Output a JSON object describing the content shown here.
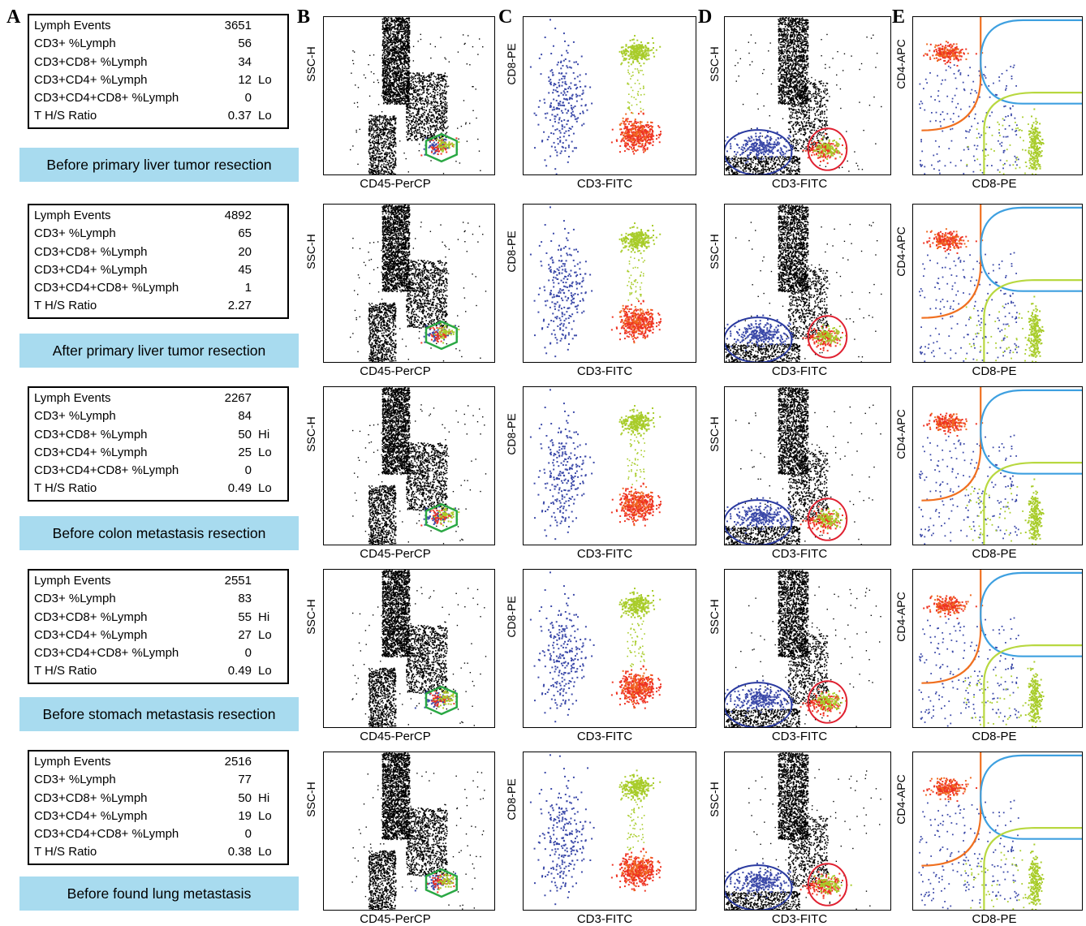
{
  "column_letters": [
    "A",
    "B",
    "C",
    "D",
    "E"
  ],
  "rows": [
    {
      "caption": "Before primary  liver tumor resection",
      "table": [
        {
          "label": "Lymph Events",
          "value": "3651",
          "flag": ""
        },
        {
          "label": "CD3+ %Lymph",
          "value": "56",
          "flag": ""
        },
        {
          "label": "CD3+CD8+ %Lymph",
          "value": "34",
          "flag": ""
        },
        {
          "label": "CD3+CD4+ %Lymph",
          "value": "12",
          "flag": "Lo"
        },
        {
          "label": "CD3+CD4+CD8+ %Lymph",
          "value": "0",
          "flag": ""
        },
        {
          "label": "T H/S Ratio",
          "value": "0.37",
          "flag": "Lo"
        }
      ]
    },
    {
      "caption": "After primary liver tumor resection",
      "table": [
        {
          "label": "Lymph Events",
          "value": "4892",
          "flag": ""
        },
        {
          "label": "CD3+ %Lymph",
          "value": "65",
          "flag": ""
        },
        {
          "label": "CD3+CD8+ %Lymph",
          "value": "20",
          "flag": ""
        },
        {
          "label": "CD3+CD4+ %Lymph",
          "value": "45",
          "flag": ""
        },
        {
          "label": "CD3+CD4+CD8+ %Lymph",
          "value": "1",
          "flag": ""
        },
        {
          "label": "T H/S Ratio",
          "value": "2.27",
          "flag": ""
        }
      ]
    },
    {
      "caption": "Before colon  metastasis resection",
      "table": [
        {
          "label": "Lymph Events",
          "value": "2267",
          "flag": ""
        },
        {
          "label": "CD3+ %Lymph",
          "value": "84",
          "flag": ""
        },
        {
          "label": "CD3+CD8+ %Lymph",
          "value": "50",
          "flag": "Hi"
        },
        {
          "label": "CD3+CD4+ %Lymph",
          "value": "25",
          "flag": "Lo"
        },
        {
          "label": "CD3+CD4+CD8+ %Lymph",
          "value": "0",
          "flag": ""
        },
        {
          "label": "T H/S Ratio",
          "value": "0.49",
          "flag": "Lo"
        }
      ]
    },
    {
      "caption": "Before stomach  metastasis resection",
      "table": [
        {
          "label": "Lymph Events",
          "value": "2551",
          "flag": ""
        },
        {
          "label": "CD3+ %Lymph",
          "value": "83",
          "flag": ""
        },
        {
          "label": "CD3+CD8+ %Lymph",
          "value": "55",
          "flag": "Hi"
        },
        {
          "label": "CD3+CD4+ %Lymph",
          "value": "27",
          "flag": "Lo"
        },
        {
          "label": "CD3+CD4+CD8+ %Lymph",
          "value": "0",
          "flag": ""
        },
        {
          "label": "T H/S Ratio",
          "value": "0.49",
          "flag": "Lo"
        }
      ]
    },
    {
      "caption": "Before found lung metastasis",
      "table": [
        {
          "label": "Lymph Events",
          "value": "2516",
          "flag": ""
        },
        {
          "label": "CD3+ %Lymph",
          "value": "77",
          "flag": ""
        },
        {
          "label": "CD3+CD8+ %Lymph",
          "value": "50",
          "flag": "Hi"
        },
        {
          "label": "CD3+CD4+ %Lymph",
          "value": "19",
          "flag": "Lo"
        },
        {
          "label": "CD3+CD4+CD8+ %Lymph",
          "value": "0",
          "flag": ""
        },
        {
          "label": "T H/S Ratio",
          "value": "0.38",
          "flag": "Lo"
        }
      ]
    }
  ],
  "plot_labels": {
    "B": {
      "x": "CD45-PerCP",
      "y": "SSC-H"
    },
    "C": {
      "x": "CD3-FITC",
      "y": "CD8-PE"
    },
    "D": {
      "x": "CD3-FITC",
      "y": "SSC-H"
    },
    "E": {
      "x": "CD8-PE",
      "y": "CD4-APC"
    }
  },
  "colors": {
    "caption_bg": "#a8dbef",
    "events_black": "#000000",
    "population_blue": "#3a48a8",
    "population_red": "#ee3322",
    "population_orange": "#f06a20",
    "population_green": "#a8cc2a",
    "gate_green": "#2aa844",
    "gate_blue": "#2a3aa0",
    "gate_red": "#e02030",
    "gate_lightblue": "#3ea0e0",
    "gate_orange": "#f07020",
    "gate_yellowgreen": "#b8d840"
  },
  "chart_data": [
    {
      "type": "scatter",
      "panel": "B",
      "xlabel": "CD45-PerCP",
      "ylabel": "SSC-H",
      "series": []
    },
    {
      "type": "scatter",
      "panel": "C",
      "xlabel": "CD3-FITC",
      "ylabel": "CD8-PE",
      "series": []
    },
    {
      "type": "scatter",
      "panel": "D",
      "xlabel": "CD3-FITC",
      "ylabel": "SSC-H",
      "series": []
    },
    {
      "type": "scatter",
      "panel": "E",
      "xlabel": "CD8-PE",
      "ylabel": "CD4-APC",
      "series": []
    }
  ]
}
